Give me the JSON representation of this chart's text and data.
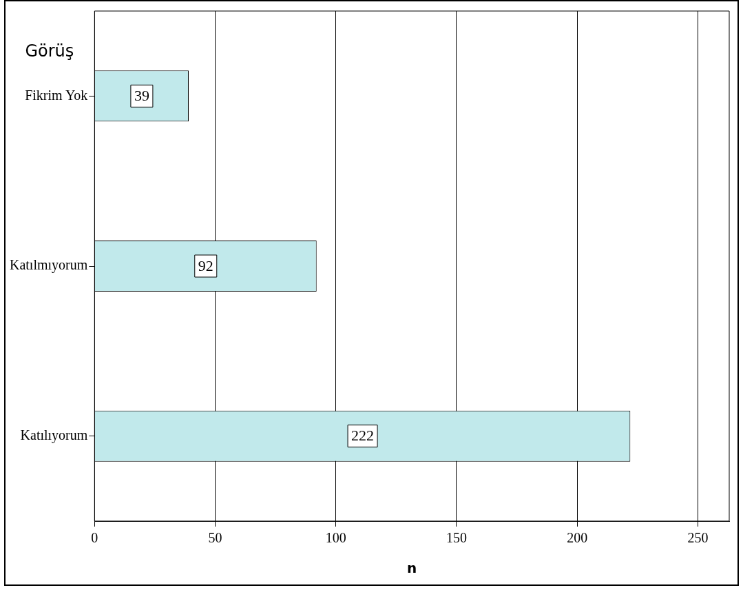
{
  "chart_data": {
    "type": "bar",
    "orientation": "horizontal",
    "ylabel": "Görüş",
    "xlabel": "n",
    "categories": [
      "Fikrim Yok",
      "Katılmıyorum",
      "Katılıyorum"
    ],
    "values": [
      39,
      92,
      222
    ],
    "color": "#c1e9eb",
    "xlim": [
      0,
      263
    ],
    "xticks": [
      0,
      50,
      100,
      150,
      200,
      250
    ],
    "grid": "x",
    "data_labels": true
  }
}
